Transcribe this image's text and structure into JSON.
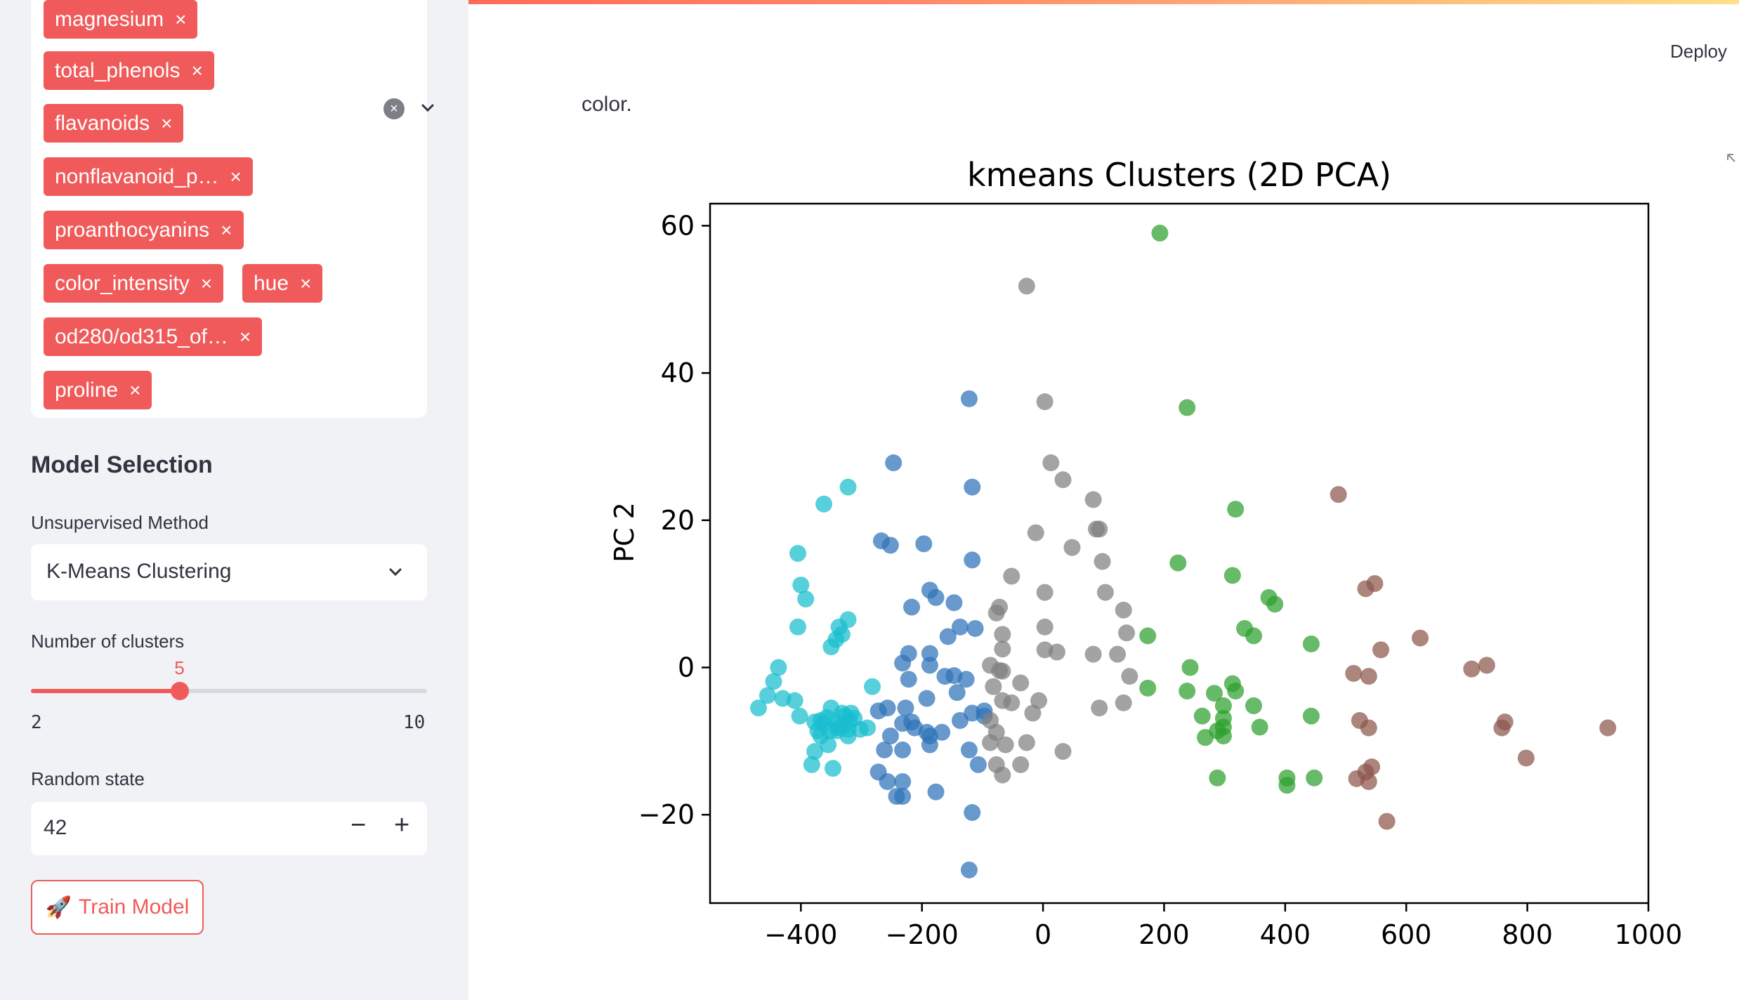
{
  "sidebar": {
    "features": [
      {
        "label": "magnesium",
        "remove": "×"
      },
      {
        "label": "total_phenols",
        "remove": "×"
      },
      {
        "label": "flavanoids",
        "remove": "×"
      },
      {
        "label": "nonflavanoid_p…",
        "remove": "×"
      },
      {
        "label": "proanthocyanins",
        "remove": "×"
      },
      {
        "label": "color_intensity",
        "remove": "×"
      },
      {
        "label": "hue",
        "remove": "×"
      },
      {
        "label": "od280/od315_of…",
        "remove": "×"
      },
      {
        "label": "proline",
        "remove": "×"
      }
    ],
    "clear_icon": "×",
    "section_title": "Model Selection",
    "method_label": "Unsupervised Method",
    "method_value": "K-Means Clustering",
    "clusters_label": "Number of clusters",
    "clusters_value": 5,
    "clusters_value_text": "5",
    "clusters_min": "2",
    "clusters_max": "10",
    "random_state_label": "Random state",
    "random_state_value": "42",
    "minus": "−",
    "plus": "+",
    "train_icon": "🚀",
    "train_label": "Train Model",
    "accent": "#f05a5a"
  },
  "header": {
    "deploy_label": "Deploy"
  },
  "main": {
    "caption": "color."
  },
  "chart_data": {
    "type": "scatter",
    "title": "kmeans Clusters (2D PCA)",
    "xlabel": "",
    "ylabel": "PC 2",
    "xlim": [
      -550,
      1000
    ],
    "ylim": [
      -32,
      63
    ],
    "xticks": [
      -400,
      -200,
      0,
      200,
      400,
      600,
      800,
      1000
    ],
    "yticks": [
      -20,
      0,
      20,
      40,
      60
    ],
    "xtick_labels": [
      "−400",
      "−200",
      "0",
      "200",
      "400",
      "600",
      "800",
      "1000"
    ],
    "ytick_labels": [
      "−20",
      "0",
      "20",
      "40",
      "60"
    ],
    "grid": false,
    "series": [
      {
        "color": "#17becf",
        "points": [
          [
            -322,
            24.5
          ],
          [
            -362,
            22.2
          ],
          [
            -405,
            15.5
          ],
          [
            -400,
            11.2
          ],
          [
            -392,
            9.3
          ],
          [
            -405,
            5.5
          ],
          [
            -322,
            6.5
          ],
          [
            -337,
            5.5
          ],
          [
            -332,
            4.5
          ],
          [
            -342,
            3.8
          ],
          [
            -350,
            2.8
          ],
          [
            -437,
            0
          ],
          [
            -445,
            -1.9
          ],
          [
            -455,
            -3.8
          ],
          [
            -470,
            -5.5
          ],
          [
            -430,
            -4.2
          ],
          [
            -410,
            -4.5
          ],
          [
            -402,
            -6.6
          ],
          [
            -377,
            -7.4
          ],
          [
            -367,
            -7.2
          ],
          [
            -357,
            -6.8
          ],
          [
            -352,
            -8.6
          ],
          [
            -340,
            -8.6
          ],
          [
            -330,
            -7.9
          ],
          [
            -320,
            -7.2
          ],
          [
            -312,
            -6.9
          ],
          [
            -302,
            -8.4
          ],
          [
            -290,
            -8.2
          ],
          [
            -322,
            -8.4
          ],
          [
            -350,
            -5.5
          ],
          [
            -342,
            -7.4
          ],
          [
            -332,
            -6.2
          ],
          [
            -355,
            -10.5
          ],
          [
            -372,
            -8.6
          ],
          [
            -377,
            -11.4
          ],
          [
            -382,
            -13.2
          ],
          [
            -347,
            -13.7
          ],
          [
            -322,
            -9.3
          ],
          [
            -317,
            -6.2
          ],
          [
            -327,
            -6.6
          ],
          [
            -282,
            -2.6
          ],
          [
            -367,
            -9.3
          ],
          [
            -362,
            -7.6
          ],
          [
            -337,
            -8.2
          ]
        ]
      },
      {
        "color": "#2e72b8",
        "points": [
          [
            -122,
            36.5
          ],
          [
            -117,
            24.5
          ],
          [
            -247,
            27.8
          ],
          [
            -267,
            17.2
          ],
          [
            -252,
            16.6
          ],
          [
            -197,
            16.8
          ],
          [
            -117,
            14.6
          ],
          [
            -217,
            8.2
          ],
          [
            -187,
            10.5
          ],
          [
            -177,
            9.5
          ],
          [
            -147,
            8.8
          ],
          [
            -112,
            5.3
          ],
          [
            -157,
            4.2
          ],
          [
            -137,
            5.5
          ],
          [
            -187,
            1.9
          ],
          [
            -187,
            0.3
          ],
          [
            -222,
            1.9
          ],
          [
            -232,
            0.6
          ],
          [
            -222,
            -1.6
          ],
          [
            -147,
            -1.1
          ],
          [
            -127,
            -1.6
          ],
          [
            -192,
            -4.2
          ],
          [
            -227,
            -5.5
          ],
          [
            -257,
            -5.5
          ],
          [
            -272,
            -5.9
          ],
          [
            -232,
            -7.6
          ],
          [
            -217,
            -7.4
          ],
          [
            -212,
            -8.2
          ],
          [
            -192,
            -8.8
          ],
          [
            -167,
            -8.8
          ],
          [
            -187,
            -9.3
          ],
          [
            -117,
            -6.2
          ],
          [
            -137,
            -7.2
          ],
          [
            -97,
            -6.6
          ],
          [
            -252,
            -9.3
          ],
          [
            -262,
            -11.2
          ],
          [
            -232,
            -11.2
          ],
          [
            -187,
            -10.5
          ],
          [
            -122,
            -11.2
          ],
          [
            -107,
            -13.2
          ],
          [
            -272,
            -14.2
          ],
          [
            -257,
            -15.5
          ],
          [
            -242,
            -17.5
          ],
          [
            -232,
            -17.5
          ],
          [
            -177,
            -16.9
          ],
          [
            -117,
            -19.7
          ],
          [
            -122,
            -27.5
          ],
          [
            -97,
            -5.9
          ],
          [
            -142,
            -3.4
          ],
          [
            -162,
            -1.2
          ],
          [
            -232,
            -15.5
          ]
        ]
      },
      {
        "color": "#7f7f7f",
        "points": [
          [
            -27,
            51.8
          ],
          [
            3,
            36.1
          ],
          [
            13,
            27.8
          ],
          [
            33,
            25.5
          ],
          [
            83,
            22.8
          ],
          [
            93,
            18.8
          ],
          [
            88,
            18.8
          ],
          [
            -12,
            18.3
          ],
          [
            48,
            16.3
          ],
          [
            98,
            14.4
          ],
          [
            -52,
            12.4
          ],
          [
            103,
            10.2
          ],
          [
            3,
            10.2
          ],
          [
            -72,
            8.2
          ],
          [
            -77,
            7.4
          ],
          [
            133,
            7.8
          ],
          [
            3,
            5.5
          ],
          [
            -67,
            4.5
          ],
          [
            138,
            4.7
          ],
          [
            3,
            2.4
          ],
          [
            23,
            2.1
          ],
          [
            -67,
            2.5
          ],
          [
            83,
            1.8
          ],
          [
            123,
            1.8
          ],
          [
            -87,
            0.3
          ],
          [
            -72,
            -0.4
          ],
          [
            -67,
            -0.5
          ],
          [
            143,
            -1.2
          ],
          [
            -37,
            -2.1
          ],
          [
            -82,
            -2.6
          ],
          [
            -67,
            -4.5
          ],
          [
            -52,
            -4.8
          ],
          [
            -7,
            -4.5
          ],
          [
            -17,
            -6.2
          ],
          [
            93,
            -5.5
          ],
          [
            133,
            -4.8
          ],
          [
            -87,
            -7.2
          ],
          [
            -77,
            -8.8
          ],
          [
            -87,
            -10.2
          ],
          [
            -62,
            -10.5
          ],
          [
            -27,
            -10.2
          ],
          [
            33,
            -11.4
          ],
          [
            -77,
            -13.2
          ],
          [
            -37,
            -13.2
          ],
          [
            -67,
            -14.6
          ]
        ]
      },
      {
        "color": "#2ca02c",
        "points": [
          [
            193,
            59
          ],
          [
            238,
            35.3
          ],
          [
            318,
            21.5
          ],
          [
            223,
            14.2
          ],
          [
            313,
            12.5
          ],
          [
            373,
            9.5
          ],
          [
            383,
            8.6
          ],
          [
            173,
            4.3
          ],
          [
            333,
            5.3
          ],
          [
            348,
            4.3
          ],
          [
            443,
            3.2
          ],
          [
            243,
            0
          ],
          [
            173,
            -2.8
          ],
          [
            238,
            -3.2
          ],
          [
            283,
            -3.5
          ],
          [
            313,
            -2.2
          ],
          [
            318,
            -3.2
          ],
          [
            348,
            -5.2
          ],
          [
            298,
            -5.2
          ],
          [
            443,
            -6.6
          ],
          [
            263,
            -6.6
          ],
          [
            298,
            -6.9
          ],
          [
            298,
            -8.1
          ],
          [
            288,
            -8.6
          ],
          [
            268,
            -9.5
          ],
          [
            358,
            -8.1
          ],
          [
            298,
            -9.3
          ],
          [
            288,
            -15
          ],
          [
            403,
            -15
          ],
          [
            403,
            -16
          ],
          [
            448,
            -15
          ]
        ]
      },
      {
        "color": "#8c564b",
        "points": [
          [
            488,
            23.5
          ],
          [
            548,
            11.4
          ],
          [
            533,
            10.7
          ],
          [
            623,
            4
          ],
          [
            558,
            2.4
          ],
          [
            708,
            -0.2
          ],
          [
            733,
            0.3
          ],
          [
            513,
            -0.8
          ],
          [
            538,
            -1.2
          ],
          [
            763,
            -7.4
          ],
          [
            758,
            -8.2
          ],
          [
            523,
            -7.2
          ],
          [
            538,
            -8.2
          ],
          [
            933,
            -8.2
          ],
          [
            798,
            -12.3
          ],
          [
            543,
            -13.5
          ],
          [
            533,
            -14.2
          ],
          [
            518,
            -15.1
          ],
          [
            538,
            -15.5
          ],
          [
            568,
            -20.9
          ]
        ]
      }
    ]
  }
}
